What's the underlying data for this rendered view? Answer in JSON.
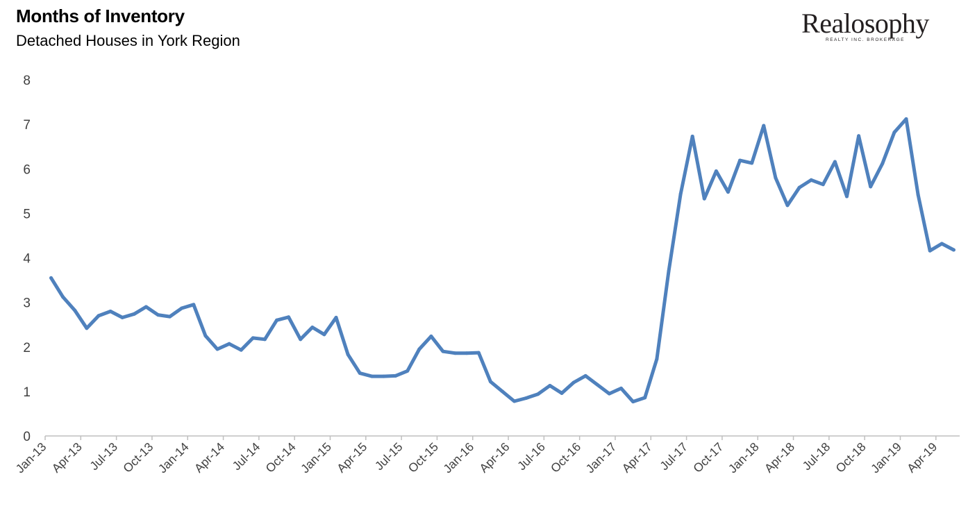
{
  "header": {
    "title": "Months of Inventory",
    "subtitle": "Detached Houses in York Region",
    "logo_main": "Realosophy",
    "logo_sub": "REALTY INC. BROKERAGE"
  },
  "colors": {
    "line": "#4f81bd",
    "axis": "#bfbfbf",
    "text": "#404040"
  },
  "chart_data": {
    "type": "line",
    "title": "Months of Inventory",
    "subtitle": "Detached Houses in York Region",
    "xlabel": "",
    "ylabel": "",
    "ylim": [
      0,
      8
    ],
    "yticks": [
      0,
      1,
      2,
      3,
      4,
      5,
      6,
      7,
      8
    ],
    "grid": false,
    "legend": "none",
    "xtick_labels": [
      "Jan-13",
      "Apr-13",
      "Jul-13",
      "Oct-13",
      "Jan-14",
      "Apr-14",
      "Jul-14",
      "Oct-14",
      "Jan-15",
      "Apr-15",
      "Jul-15",
      "Oct-15",
      "Jan-16",
      "Apr-16",
      "Jul-16",
      "Oct-16",
      "Jan-17",
      "Apr-17",
      "Jul-17",
      "Oct-17",
      "Jan-18",
      "Apr-18",
      "Jul-18",
      "Oct-18",
      "Jan-19",
      "Apr-19"
    ],
    "x": [
      "Jan-13",
      "Feb-13",
      "Mar-13",
      "Apr-13",
      "May-13",
      "Jun-13",
      "Jul-13",
      "Aug-13",
      "Sep-13",
      "Oct-13",
      "Nov-13",
      "Dec-13",
      "Jan-14",
      "Feb-14",
      "Mar-14",
      "Apr-14",
      "May-14",
      "Jun-14",
      "Jul-14",
      "Aug-14",
      "Sep-14",
      "Oct-14",
      "Nov-14",
      "Dec-14",
      "Jan-15",
      "Feb-15",
      "Mar-15",
      "Apr-15",
      "May-15",
      "Jun-15",
      "Jul-15",
      "Aug-15",
      "Sep-15",
      "Oct-15",
      "Nov-15",
      "Dec-15",
      "Jan-16",
      "Feb-16",
      "Mar-16",
      "Apr-16",
      "May-16",
      "Jun-16",
      "Jul-16",
      "Aug-16",
      "Sep-16",
      "Oct-16",
      "Nov-16",
      "Dec-16",
      "Jan-17",
      "Feb-17",
      "Mar-17",
      "Apr-17",
      "May-17",
      "Jun-17",
      "Jul-17",
      "Aug-17",
      "Sep-17",
      "Oct-17",
      "Nov-17",
      "Dec-17",
      "Jan-18",
      "Feb-18",
      "Mar-18",
      "Apr-18",
      "May-18",
      "Jun-18",
      "Jul-18",
      "Aug-18",
      "Sep-18",
      "Oct-18",
      "Nov-18",
      "Dec-18",
      "Jan-19",
      "Feb-19",
      "Mar-19",
      "Apr-19",
      "May-19"
    ],
    "series": [
      {
        "values": [
          3.55,
          3.12,
          2.82,
          2.42,
          2.7,
          2.8,
          2.66,
          2.74,
          2.9,
          2.72,
          2.68,
          2.87,
          2.95,
          2.25,
          1.95,
          2.07,
          1.93,
          2.2,
          2.17,
          2.6,
          2.67,
          2.17,
          2.44,
          2.28,
          2.66,
          1.83,
          1.41,
          1.34,
          1.34,
          1.35,
          1.46,
          1.95,
          2.24,
          1.9,
          1.86,
          1.86,
          1.87,
          1.22,
          1.0,
          0.78,
          0.85,
          0.94,
          1.13,
          0.96,
          1.2,
          1.35,
          1.15,
          0.95,
          1.07,
          0.77,
          0.86,
          1.73,
          3.7,
          5.43,
          6.73,
          5.33,
          5.95,
          5.48,
          6.19,
          6.13,
          6.97,
          5.8,
          5.18,
          5.58,
          5.75,
          5.65,
          6.16,
          5.38,
          6.74,
          5.6,
          6.12,
          6.82,
          7.12,
          5.42,
          4.16,
          4.32,
          4.18
        ]
      }
    ]
  }
}
